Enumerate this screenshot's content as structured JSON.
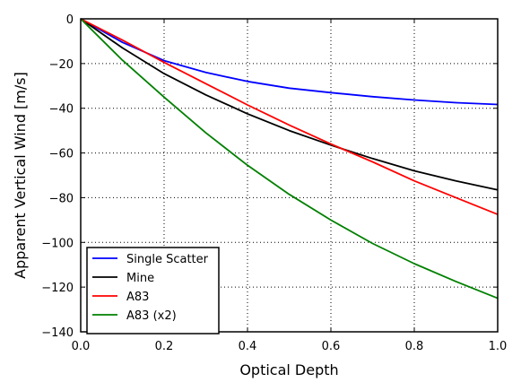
{
  "chart_data": {
    "type": "line",
    "title": "",
    "xlabel": "Optical Depth",
    "ylabel": "Apparent Vertical Wind [m/s]",
    "xlim": [
      0.0,
      1.0
    ],
    "ylim": [
      -140,
      0
    ],
    "xticks": [
      0.0,
      0.2,
      0.4,
      0.6,
      0.8,
      1.0
    ],
    "xtick_labels": [
      "0.0",
      "0.2",
      "0.4",
      "0.6",
      "0.8",
      "1.0"
    ],
    "yticks": [
      0,
      -20,
      -40,
      -60,
      -80,
      -100,
      -120,
      -140
    ],
    "ytick_labels": [
      "0",
      "−20",
      "−40",
      "−60",
      "−80",
      "−100",
      "−120",
      "−140"
    ],
    "grid": true,
    "legend_position": "lower-left",
    "x": [
      0.0,
      0.1,
      0.2,
      0.3,
      0.4,
      0.5,
      0.6,
      0.7,
      0.8,
      0.9,
      1.0
    ],
    "series": [
      {
        "name": "Single Scatter",
        "color": "#0000ff",
        "values": [
          0,
          -10.5,
          -18.7,
          -24.0,
          -28.0,
          -31.0,
          -33.0,
          -34.8,
          -36.3,
          -37.5,
          -38.3
        ]
      },
      {
        "name": "Mine",
        "color": "#000000",
        "values": [
          0,
          -13.0,
          -24.5,
          -34.0,
          -42.5,
          -50.0,
          -56.5,
          -62.5,
          -68.0,
          -72.5,
          -76.5
        ]
      },
      {
        "name": "A83",
        "color": "#ff0000",
        "values": [
          0,
          -9.5,
          -19.5,
          -29.0,
          -38.5,
          -47.5,
          -56.0,
          -64.0,
          -72.5,
          -80.0,
          -87.5
        ]
      },
      {
        "name": "A83 (x2)",
        "color": "#008000",
        "values": [
          0,
          -18.5,
          -35.0,
          -51.0,
          -65.5,
          -78.5,
          -90.0,
          -100.5,
          -109.5,
          -117.5,
          -125.0
        ]
      }
    ]
  }
}
